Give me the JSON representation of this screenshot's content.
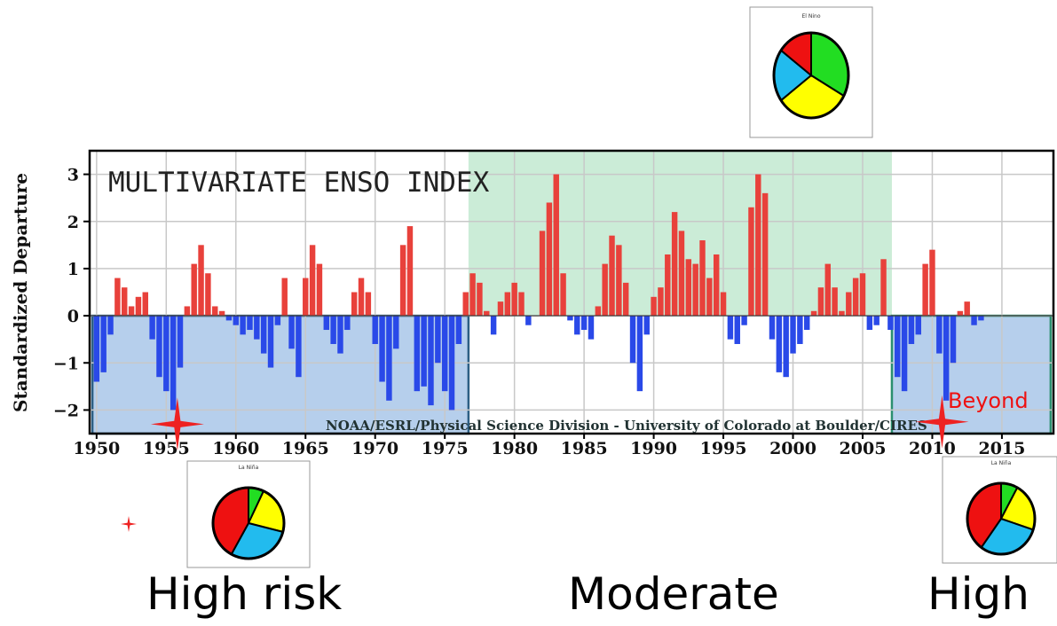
{
  "chart_data": {
    "type": "bar",
    "title": "MULTIVARIATE ENSO INDEX",
    "ylabel": "Standardized Departure",
    "xlabel": "",
    "credit": "NOAA/ESRL/Physical Science Division - University of Colorado at Boulder/CIRES",
    "xlim": [
      1949.5,
      2018.7
    ],
    "ylim": [
      -2.5,
      3.5
    ],
    "x_ticks": [
      1950,
      1955,
      1960,
      1965,
      1970,
      1975,
      1980,
      1985,
      1990,
      1995,
      2000,
      2005,
      2010,
      2015
    ],
    "y_ticks": [
      -2,
      -1,
      0,
      1,
      2,
      3
    ],
    "grid": true,
    "positive_color": "#e8413b",
    "negative_color": "#2a49e8",
    "x": [
      1950.0,
      1950.5,
      1951.0,
      1951.5,
      1952.0,
      1952.5,
      1953.0,
      1953.5,
      1954.0,
      1954.5,
      1955.0,
      1955.5,
      1956.0,
      1956.5,
      1957.0,
      1957.5,
      1958.0,
      1958.5,
      1959.0,
      1959.5,
      1960.0,
      1960.5,
      1961.0,
      1961.5,
      1962.0,
      1962.5,
      1963.0,
      1963.5,
      1964.0,
      1964.5,
      1965.0,
      1965.5,
      1966.0,
      1966.5,
      1967.0,
      1967.5,
      1968.0,
      1968.5,
      1969.0,
      1969.5,
      1970.0,
      1970.5,
      1971.0,
      1971.5,
      1972.0,
      1972.5,
      1973.0,
      1973.5,
      1974.0,
      1974.5,
      1975.0,
      1975.5,
      1976.0,
      1976.5,
      1977.0,
      1977.5,
      1978.0,
      1978.5,
      1979.0,
      1979.5,
      1980.0,
      1980.5,
      1981.0,
      1981.5,
      1982.0,
      1982.5,
      1983.0,
      1983.5,
      1984.0,
      1984.5,
      1985.0,
      1985.5,
      1986.0,
      1986.5,
      1987.0,
      1987.5,
      1988.0,
      1988.5,
      1989.0,
      1989.5,
      1990.0,
      1990.5,
      1991.0,
      1991.5,
      1992.0,
      1992.5,
      1993.0,
      1993.5,
      1994.0,
      1994.5,
      1995.0,
      1995.5,
      1996.0,
      1996.5,
      1997.0,
      1997.5,
      1998.0,
      1998.5,
      1999.0,
      1999.5,
      2000.0,
      2000.5,
      2001.0,
      2001.5,
      2002.0,
      2002.5,
      2003.0,
      2003.5,
      2004.0,
      2004.5,
      2005.0,
      2005.5,
      2006.0,
      2006.5,
      2007.0,
      2007.5,
      2008.0,
      2008.5,
      2009.0,
      2009.5,
      2010.0,
      2010.5,
      2011.0,
      2011.5,
      2012.0,
      2012.5,
      2013.0,
      2013.5
    ],
    "values": [
      -1.4,
      -1.2,
      -0.4,
      0.8,
      0.6,
      0.2,
      0.4,
      0.5,
      -0.5,
      -1.3,
      -1.6,
      -2.0,
      -1.1,
      0.2,
      1.1,
      1.5,
      0.9,
      0.2,
      0.1,
      -0.1,
      -0.2,
      -0.4,
      -0.3,
      -0.5,
      -0.8,
      -1.1,
      -0.2,
      0.8,
      -0.7,
      -1.3,
      0.8,
      1.5,
      1.1,
      -0.3,
      -0.6,
      -0.8,
      -0.3,
      0.5,
      0.8,
      0.5,
      -0.6,
      -1.4,
      -1.8,
      -0.7,
      1.5,
      1.9,
      -1.6,
      -1.5,
      -1.9,
      -1.0,
      -1.6,
      -2.0,
      -0.6,
      0.5,
      0.9,
      0.7,
      0.1,
      -0.4,
      0.3,
      0.5,
      0.7,
      0.5,
      -0.2,
      0.0,
      1.8,
      2.4,
      3.0,
      0.9,
      -0.1,
      -0.4,
      -0.3,
      -0.5,
      0.2,
      1.1,
      1.7,
      1.5,
      0.7,
      -1.0,
      -1.6,
      -0.4,
      0.4,
      0.6,
      1.3,
      2.2,
      1.8,
      1.2,
      1.1,
      1.6,
      0.8,
      1.3,
      0.5,
      -0.5,
      -0.6,
      -0.2,
      2.3,
      3.0,
      2.6,
      -0.5,
      -1.2,
      -1.3,
      -0.8,
      -0.6,
      -0.3,
      0.1,
      0.6,
      1.1,
      0.6,
      0.1,
      0.5,
      0.8,
      0.9,
      -0.3,
      -0.2,
      1.2,
      -0.3,
      -1.3,
      -1.6,
      -0.6,
      -0.4,
      1.1,
      1.4,
      -0.8,
      -1.8,
      -1.0,
      0.1,
      0.3,
      -0.2,
      -0.1
    ]
  },
  "regions": [
    {
      "name": "la-nina-phase-1",
      "x0": 1949.7,
      "x1": 1976.7,
      "y0": -2.5,
      "y1": 0,
      "color": "rgba(80,140,210,0.42)",
      "border": "#2d5f84"
    },
    {
      "name": "el-nino-phase",
      "x0": 1976.7,
      "x1": 2007.1,
      "y0": 0,
      "y1": 3.5,
      "color": "rgba(130,210,160,0.42)",
      "border": "none"
    },
    {
      "name": "la-nina-phase-2",
      "x0": 2007.1,
      "x1": 2018.5,
      "y0": -2.5,
      "y1": 0,
      "color": "rgba(80,140,210,0.42)",
      "border": "#2b8f6f"
    }
  ],
  "markers": [
    {
      "name": "star-1955",
      "year": 1955.8,
      "value": -2.3
    },
    {
      "name": "star-2010",
      "year": 2010.7,
      "value": -2.25
    }
  ],
  "beyond_label": "Beyond",
  "insets": [
    {
      "name": "el-nino",
      "title": "El Nino",
      "slices": [
        {
          "color": "#22dd22",
          "frac": 0.33
        },
        {
          "color": "#ffff00",
          "frac": 0.32
        },
        {
          "color": "#22bbee",
          "frac": 0.2
        },
        {
          "color": "#ee1111",
          "frac": 0.15
        }
      ]
    },
    {
      "name": "la-nina-left",
      "title": "La Niña",
      "slices": [
        {
          "color": "#22dd22",
          "frac": 0.07
        },
        {
          "color": "#ffff00",
          "frac": 0.22
        },
        {
          "color": "#22bbee",
          "frac": 0.29
        },
        {
          "color": "#ee1111",
          "frac": 0.42
        }
      ]
    },
    {
      "name": "la-nina-right",
      "title": "La Niña",
      "slices": [
        {
          "color": "#22dd22",
          "frac": 0.08
        },
        {
          "color": "#ffff00",
          "frac": 0.22
        },
        {
          "color": "#22bbee",
          "frac": 0.3
        },
        {
          "color": "#ee1111",
          "frac": 0.4
        }
      ]
    }
  ],
  "captions": {
    "left": "High risk",
    "middle": "Moderate",
    "right": "High"
  }
}
